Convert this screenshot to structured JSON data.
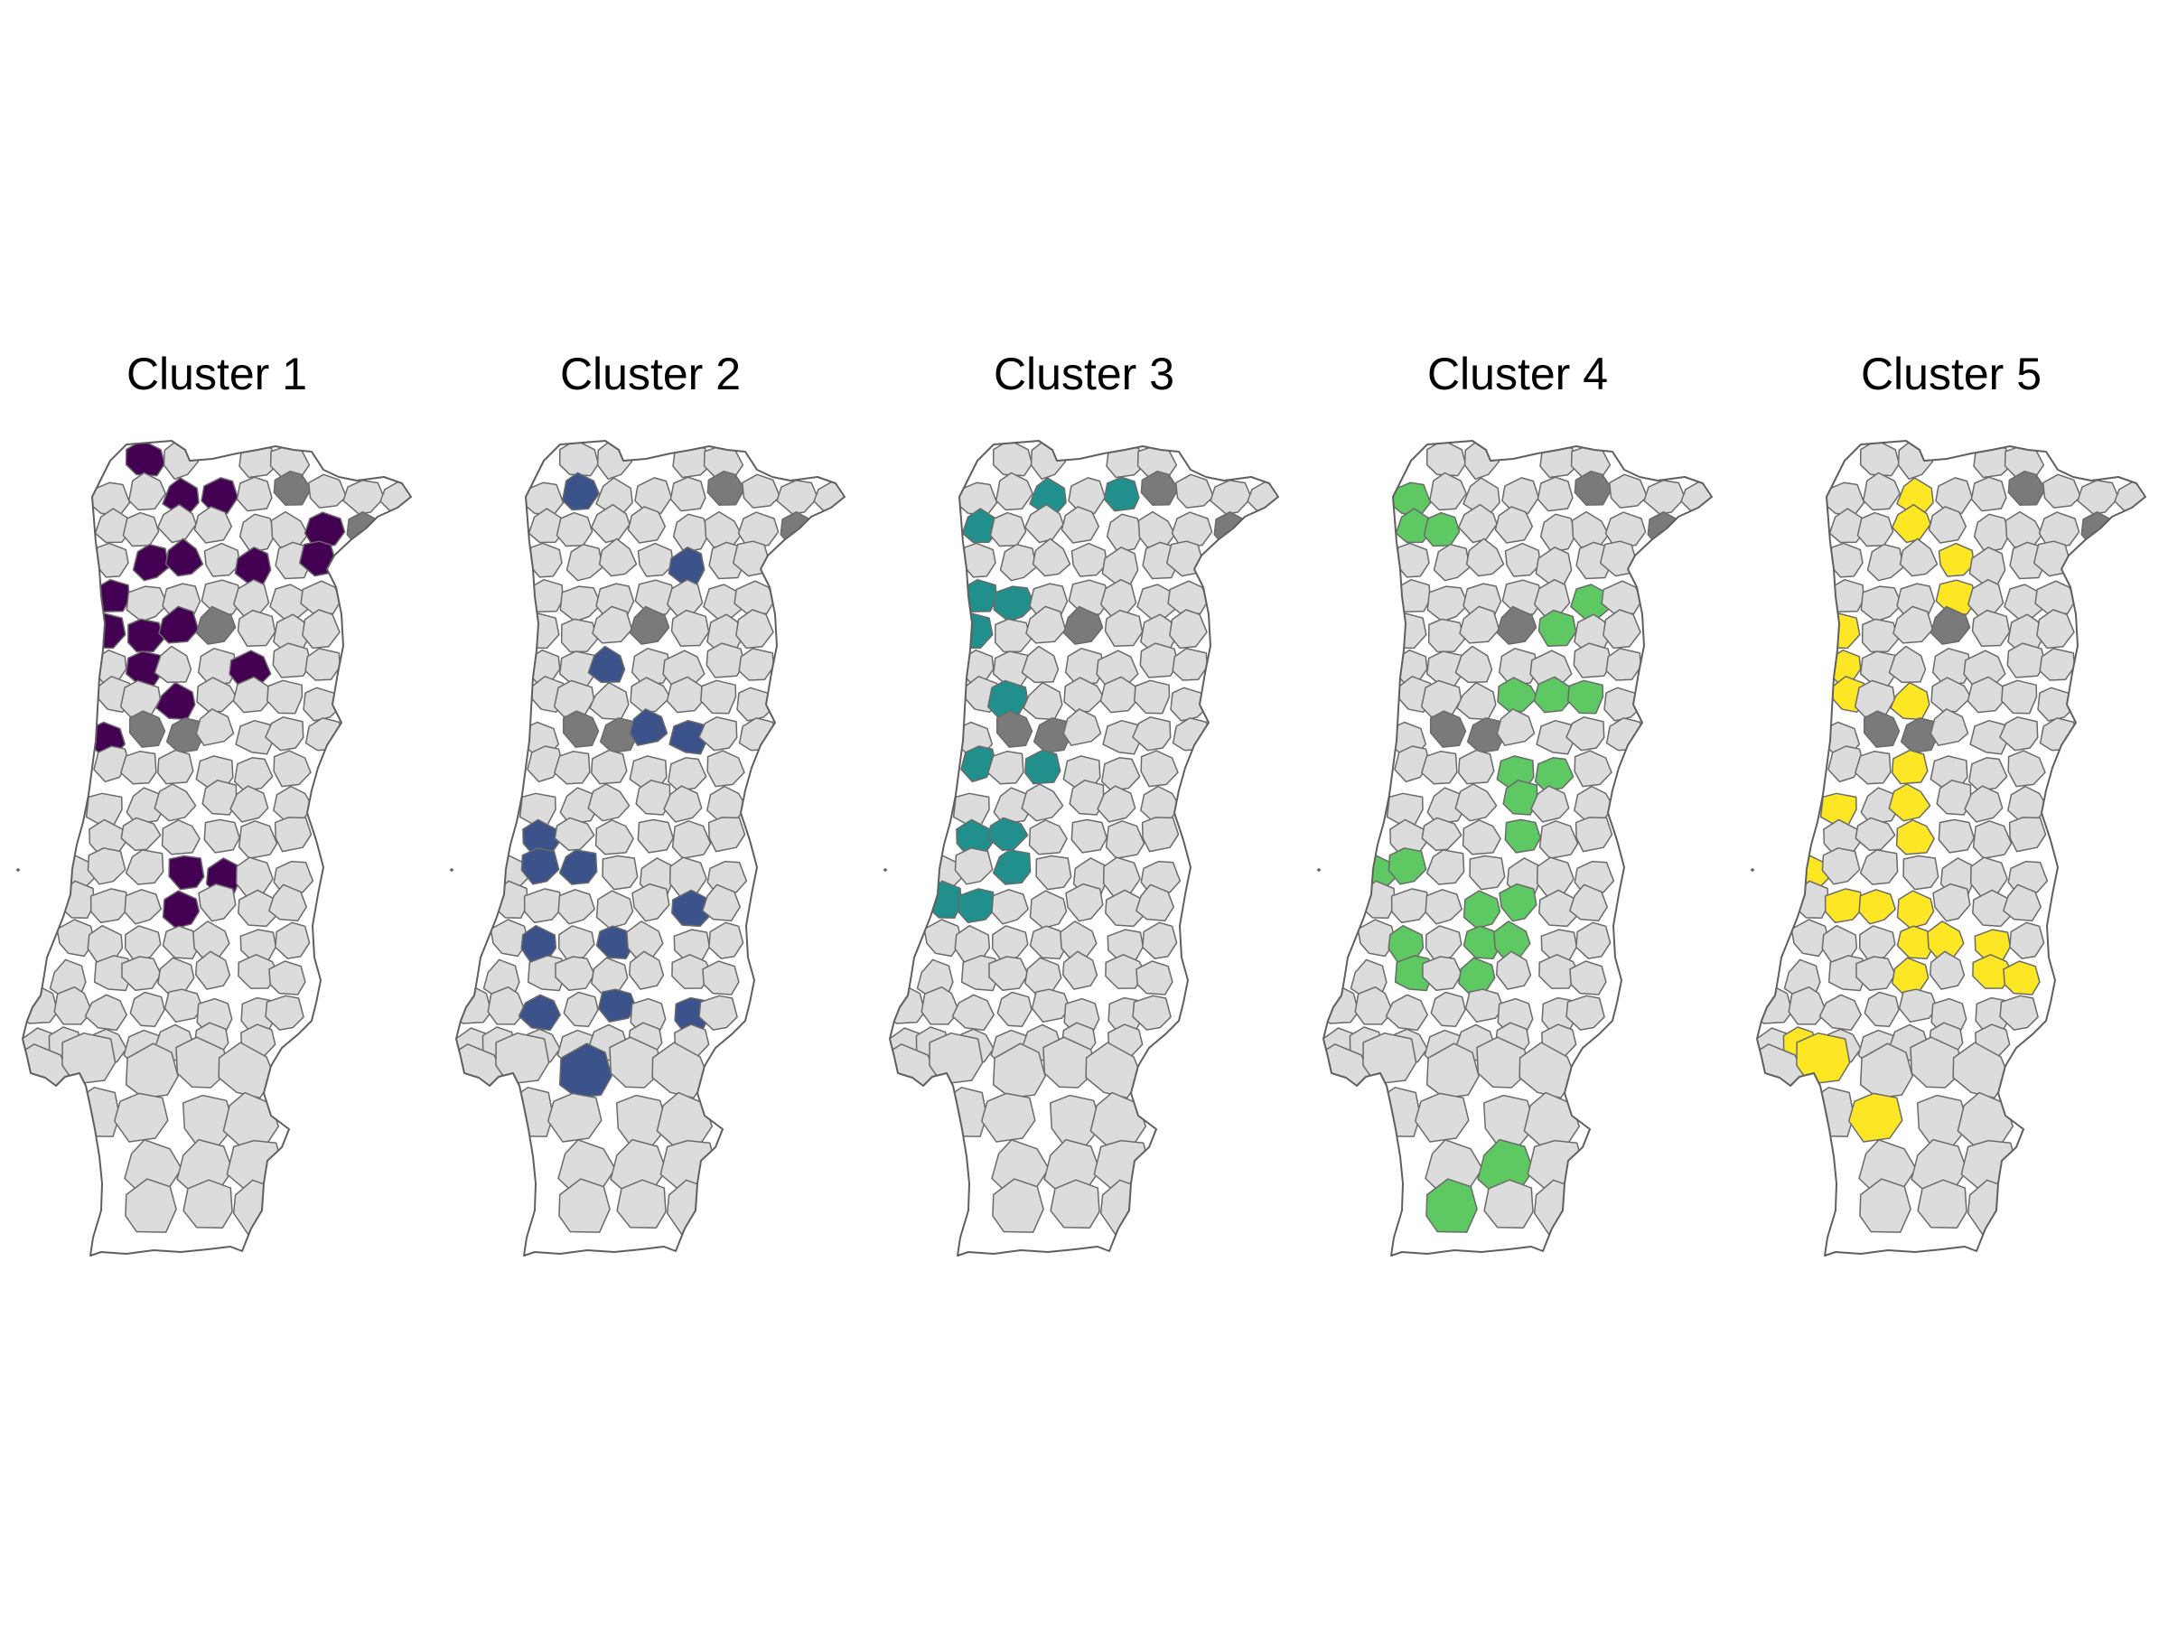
{
  "colors": {
    "base": "#dcdcdc",
    "missing": "#7a7a7a",
    "border": "#6a6a6a"
  },
  "panels": [
    {
      "title": "Cluster 1",
      "color": "#440154"
    },
    {
      "title": "Cluster 2",
      "color": "#3b528b"
    },
    {
      "title": "Cluster 3",
      "color": "#21908c"
    },
    {
      "title": "Cluster 4",
      "color": "#5ec962"
    },
    {
      "title": "Cluster 5",
      "color": "#fde725"
    }
  ]
}
